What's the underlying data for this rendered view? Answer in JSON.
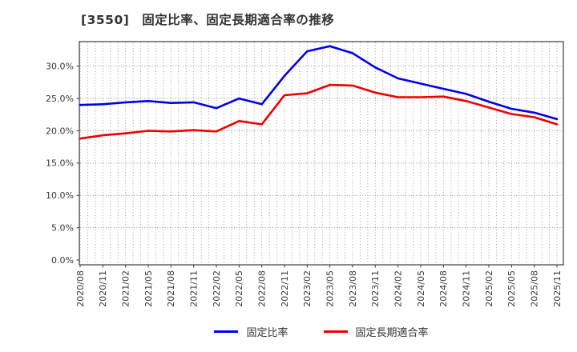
{
  "title": "[3550]　固定比率、固定長期適合率の推移",
  "chart_data": {
    "type": "line",
    "title": "[3550]　固定比率、固定長期適合率の推移",
    "categories": [
      "2020/08",
      "2020/11",
      "2021/02",
      "2021/05",
      "2021/08",
      "2021/11",
      "2022/02",
      "2022/05",
      "2022/08",
      "2022/11",
      "2023/02",
      "2023/05",
      "2023/08",
      "2023/11",
      "2024/02",
      "2024/05",
      "2024/08",
      "2024/11",
      "2025/02",
      "2025/05",
      "2025/08",
      "2025/11"
    ],
    "series": [
      {
        "name": "固定比率",
        "color": "#0000ee",
        "values": [
          24.0,
          24.1,
          24.4,
          24.6,
          24.3,
          24.4,
          23.5,
          25.0,
          24.1,
          28.5,
          32.3,
          33.1,
          32.0,
          29.8,
          28.1,
          27.3,
          26.5,
          25.7,
          24.5,
          23.4,
          22.8,
          21.8
        ]
      },
      {
        "name": "固定長期適合率",
        "color": "#ee0000",
        "values": [
          18.8,
          19.3,
          19.6,
          20.0,
          19.9,
          20.1,
          19.9,
          21.5,
          21.0,
          25.5,
          25.8,
          27.1,
          27.0,
          25.9,
          25.2,
          25.2,
          25.3,
          24.6,
          23.6,
          22.6,
          22.1,
          21.0
        ]
      }
    ],
    "xlabel": "",
    "ylabel": "",
    "yticks": [
      0,
      5,
      10,
      15,
      20,
      25,
      30
    ],
    "ytick_suffix": "%",
    "ylim": [
      -0.7,
      33.8
    ],
    "grid": true,
    "minor_x_divisions": 3,
    "legend_position": "bottom-center"
  },
  "legend": {
    "items": [
      {
        "label": "固定比率",
        "color": "#0000ee",
        "key": "fixed-ratio"
      },
      {
        "label": "固定長期適合率",
        "color": "#ee0000",
        "key": "fixed-long-term-ratio"
      }
    ]
  }
}
